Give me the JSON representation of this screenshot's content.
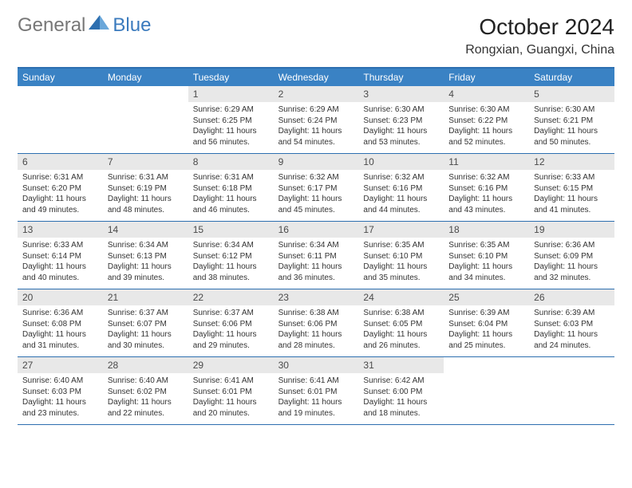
{
  "logo": {
    "text1": "General",
    "text2": "Blue"
  },
  "title": "October 2024",
  "location": "Rongxian, Guangxi, China",
  "colors": {
    "header_bg": "#3a82c4",
    "header_text": "#ffffff",
    "daynum_bg": "#e8e8e8",
    "border": "#2d6fb0",
    "body_text": "#333333",
    "logo_gray": "#777777",
    "logo_blue": "#3a7abd"
  },
  "weekdays": [
    "Sunday",
    "Monday",
    "Tuesday",
    "Wednesday",
    "Thursday",
    "Friday",
    "Saturday"
  ],
  "weeks": [
    [
      null,
      null,
      {
        "n": "1",
        "sr": "6:29 AM",
        "ss": "6:25 PM",
        "dl": "11 hours and 56 minutes."
      },
      {
        "n": "2",
        "sr": "6:29 AM",
        "ss": "6:24 PM",
        "dl": "11 hours and 54 minutes."
      },
      {
        "n": "3",
        "sr": "6:30 AM",
        "ss": "6:23 PM",
        "dl": "11 hours and 53 minutes."
      },
      {
        "n": "4",
        "sr": "6:30 AM",
        "ss": "6:22 PM",
        "dl": "11 hours and 52 minutes."
      },
      {
        "n": "5",
        "sr": "6:30 AM",
        "ss": "6:21 PM",
        "dl": "11 hours and 50 minutes."
      }
    ],
    [
      {
        "n": "6",
        "sr": "6:31 AM",
        "ss": "6:20 PM",
        "dl": "11 hours and 49 minutes."
      },
      {
        "n": "7",
        "sr": "6:31 AM",
        "ss": "6:19 PM",
        "dl": "11 hours and 48 minutes."
      },
      {
        "n": "8",
        "sr": "6:31 AM",
        "ss": "6:18 PM",
        "dl": "11 hours and 46 minutes."
      },
      {
        "n": "9",
        "sr": "6:32 AM",
        "ss": "6:17 PM",
        "dl": "11 hours and 45 minutes."
      },
      {
        "n": "10",
        "sr": "6:32 AM",
        "ss": "6:16 PM",
        "dl": "11 hours and 44 minutes."
      },
      {
        "n": "11",
        "sr": "6:32 AM",
        "ss": "6:16 PM",
        "dl": "11 hours and 43 minutes."
      },
      {
        "n": "12",
        "sr": "6:33 AM",
        "ss": "6:15 PM",
        "dl": "11 hours and 41 minutes."
      }
    ],
    [
      {
        "n": "13",
        "sr": "6:33 AM",
        "ss": "6:14 PM",
        "dl": "11 hours and 40 minutes."
      },
      {
        "n": "14",
        "sr": "6:34 AM",
        "ss": "6:13 PM",
        "dl": "11 hours and 39 minutes."
      },
      {
        "n": "15",
        "sr": "6:34 AM",
        "ss": "6:12 PM",
        "dl": "11 hours and 38 minutes."
      },
      {
        "n": "16",
        "sr": "6:34 AM",
        "ss": "6:11 PM",
        "dl": "11 hours and 36 minutes."
      },
      {
        "n": "17",
        "sr": "6:35 AM",
        "ss": "6:10 PM",
        "dl": "11 hours and 35 minutes."
      },
      {
        "n": "18",
        "sr": "6:35 AM",
        "ss": "6:10 PM",
        "dl": "11 hours and 34 minutes."
      },
      {
        "n": "19",
        "sr": "6:36 AM",
        "ss": "6:09 PM",
        "dl": "11 hours and 32 minutes."
      }
    ],
    [
      {
        "n": "20",
        "sr": "6:36 AM",
        "ss": "6:08 PM",
        "dl": "11 hours and 31 minutes."
      },
      {
        "n": "21",
        "sr": "6:37 AM",
        "ss": "6:07 PM",
        "dl": "11 hours and 30 minutes."
      },
      {
        "n": "22",
        "sr": "6:37 AM",
        "ss": "6:06 PM",
        "dl": "11 hours and 29 minutes."
      },
      {
        "n": "23",
        "sr": "6:38 AM",
        "ss": "6:06 PM",
        "dl": "11 hours and 28 minutes."
      },
      {
        "n": "24",
        "sr": "6:38 AM",
        "ss": "6:05 PM",
        "dl": "11 hours and 26 minutes."
      },
      {
        "n": "25",
        "sr": "6:39 AM",
        "ss": "6:04 PM",
        "dl": "11 hours and 25 minutes."
      },
      {
        "n": "26",
        "sr": "6:39 AM",
        "ss": "6:03 PM",
        "dl": "11 hours and 24 minutes."
      }
    ],
    [
      {
        "n": "27",
        "sr": "6:40 AM",
        "ss": "6:03 PM",
        "dl": "11 hours and 23 minutes."
      },
      {
        "n": "28",
        "sr": "6:40 AM",
        "ss": "6:02 PM",
        "dl": "11 hours and 22 minutes."
      },
      {
        "n": "29",
        "sr": "6:41 AM",
        "ss": "6:01 PM",
        "dl": "11 hours and 20 minutes."
      },
      {
        "n": "30",
        "sr": "6:41 AM",
        "ss": "6:01 PM",
        "dl": "11 hours and 19 minutes."
      },
      {
        "n": "31",
        "sr": "6:42 AM",
        "ss": "6:00 PM",
        "dl": "11 hours and 18 minutes."
      },
      null,
      null
    ]
  ],
  "labels": {
    "sunrise": "Sunrise:",
    "sunset": "Sunset:",
    "daylight": "Daylight:"
  }
}
